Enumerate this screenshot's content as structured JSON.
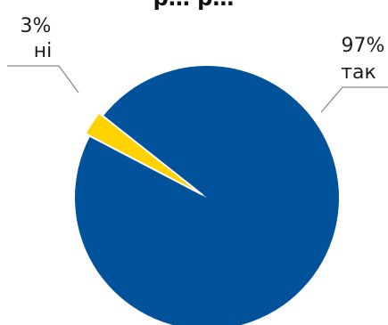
{
  "chart_data": {
    "type": "pie",
    "categories": [
      "так",
      "ні"
    ],
    "values": [
      97,
      3
    ],
    "labels": [
      "97%",
      "3%"
    ],
    "colors": [
      "#00529b",
      "#ffd200"
    ],
    "leader_color": "#8a8a8a",
    "legend": "none"
  }
}
